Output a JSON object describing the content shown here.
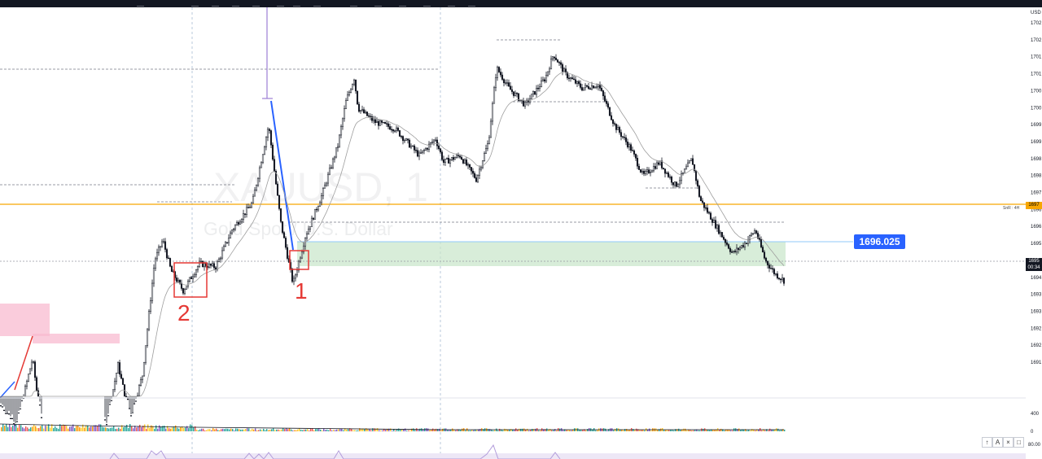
{
  "chart_data": {
    "type": "candlestick",
    "watermark_symbol": "XAUUSD, 1",
    "watermark_name": "Gold Spot / U.S. Dollar",
    "currency": "USD",
    "y_ticks": [
      "1702",
      "1702",
      "1701",
      "1701",
      "1700",
      "1700",
      "1699",
      "1699",
      "1698",
      "1698",
      "1697",
      "1696",
      "1696",
      "1695",
      "1694",
      "1694",
      "1693",
      "1693",
      "1692",
      "1692",
      "1691"
    ],
    "current_price": "1696.025",
    "last_price": "1695",
    "countdown": "00:34",
    "level_label": "SnR : 4H",
    "level_tag": "1697",
    "volume_ticks": [
      "400",
      "0"
    ],
    "indicator_tick": "80.00",
    "annotations": [
      "1",
      "2"
    ],
    "close_path": [
      [
        0,
        1691.5
      ],
      [
        20,
        1690.9
      ],
      [
        40,
        1692.9
      ],
      [
        50,
        1691.0
      ],
      [
        130,
        1690.9
      ],
      [
        145,
        1692.7
      ],
      [
        160,
        1691.1
      ],
      [
        175,
        1692.4
      ],
      [
        190,
        1695.8
      ],
      [
        200,
        1696.4
      ],
      [
        210,
        1695.5
      ],
      [
        225,
        1694.9
      ],
      [
        245,
        1695.7
      ],
      [
        265,
        1695.6
      ],
      [
        285,
        1696.7
      ],
      [
        310,
        1697.5
      ],
      [
        330,
        1699.8
      ],
      [
        345,
        1696.9
      ],
      [
        360,
        1695.1
      ],
      [
        375,
        1696.5
      ],
      [
        395,
        1697.7
      ],
      [
        415,
        1699.2
      ],
      [
        425,
        1700.5
      ],
      [
        435,
        1701.2
      ],
      [
        440,
        1700.3
      ],
      [
        460,
        1699.9
      ],
      [
        485,
        1699.7
      ],
      [
        515,
        1698.9
      ],
      [
        535,
        1699.4
      ],
      [
        545,
        1698.7
      ],
      [
        565,
        1698.9
      ],
      [
        585,
        1698.2
      ],
      [
        600,
        1699.3
      ],
      [
        610,
        1701.5
      ],
      [
        625,
        1700.9
      ],
      [
        645,
        1700.4
      ],
      [
        670,
        1701.2
      ],
      [
        680,
        1701.9
      ],
      [
        695,
        1701.3
      ],
      [
        715,
        1700.9
      ],
      [
        735,
        1701.0
      ],
      [
        755,
        1699.8
      ],
      [
        775,
        1699.1
      ],
      [
        790,
        1698.3
      ],
      [
        810,
        1698.7
      ],
      [
        830,
        1698.0
      ],
      [
        850,
        1698.8
      ],
      [
        860,
        1697.6
      ],
      [
        880,
        1696.8
      ],
      [
        900,
        1696.0
      ],
      [
        915,
        1696.3
      ],
      [
        928,
        1696.7
      ],
      [
        940,
        1695.8
      ],
      [
        952,
        1695.4
      ],
      [
        963,
        1695.2
      ]
    ]
  },
  "toolbar": {
    "tools": [
      "drawing-tool",
      "line-tool",
      "brush-tool",
      "text-tool",
      "shape-tool",
      "measure-tool",
      "zoom-tool",
      "magnet-tool",
      "lock-tool",
      "eye-tool",
      "delete-tool"
    ],
    "right_icons": [
      "screenshot-icon",
      "settings-icon"
    ]
  },
  "controls": {
    "up": "↑",
    "auto": "A",
    "close": "×",
    "layout": "□"
  }
}
